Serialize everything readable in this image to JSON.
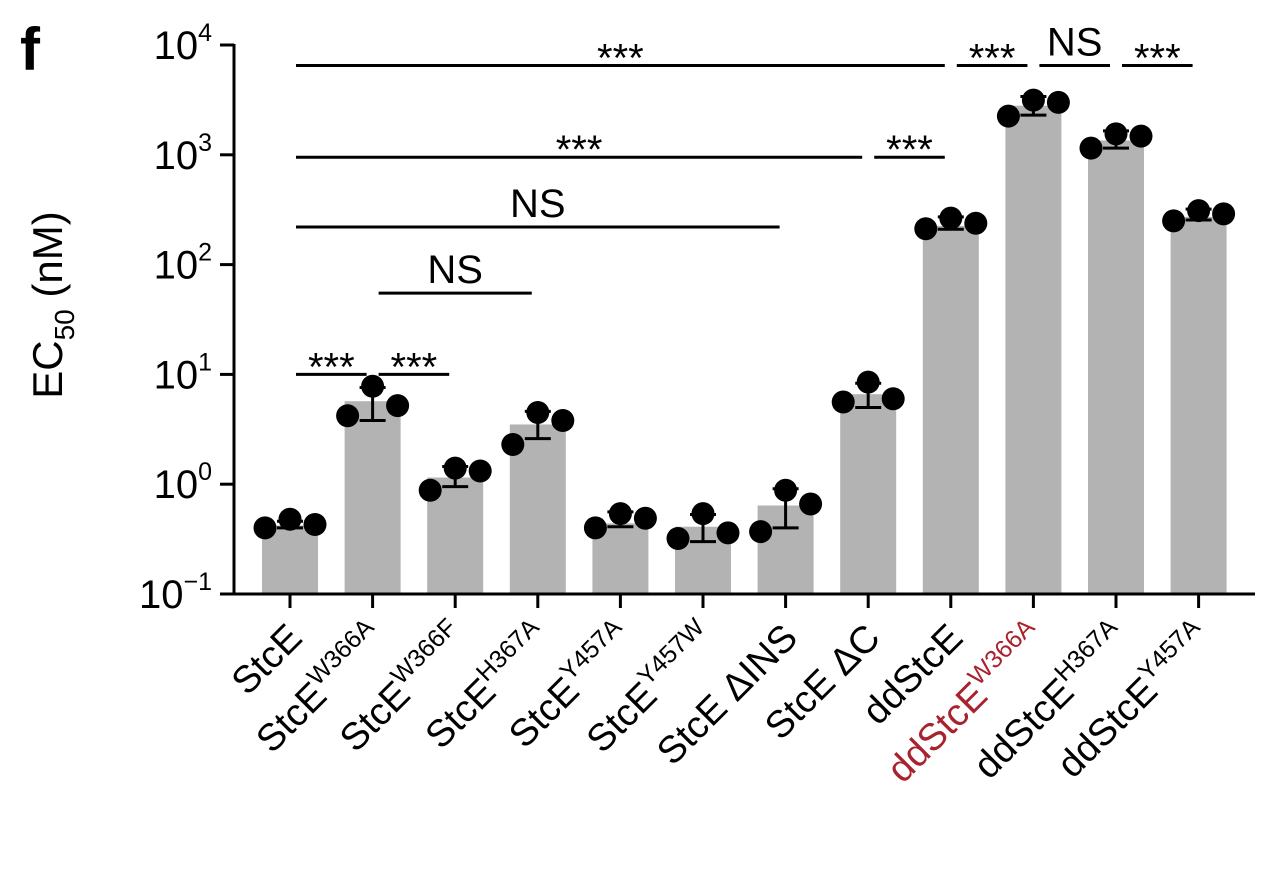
{
  "panel_label": "f",
  "chart_data": {
    "type": "bar",
    "ylabel": {
      "base": "EC",
      "sub": "50",
      "unit": " (nM)"
    },
    "yscale": "log",
    "ylim": [
      0.1,
      10000
    ],
    "yticks": [
      {
        "value": 0.1,
        "base": "10",
        "exp": "−1"
      },
      {
        "value": 1,
        "base": "10",
        "exp": "0"
      },
      {
        "value": 10,
        "base": "10",
        "exp": "1"
      },
      {
        "value": 100,
        "base": "10",
        "exp": "2"
      },
      {
        "value": 1000,
        "base": "10",
        "exp": "3"
      },
      {
        "value": 10000,
        "base": "10",
        "exp": "4"
      }
    ],
    "categories": [
      {
        "base": "StcE",
        "sup": "",
        "color": "#000000"
      },
      {
        "base": "StcE",
        "sup": "W366A",
        "color": "#000000"
      },
      {
        "base": "StcE",
        "sup": "W366F",
        "color": "#000000"
      },
      {
        "base": "StcE",
        "sup": "H367A",
        "color": "#000000"
      },
      {
        "base": "StcE",
        "sup": "Y457A",
        "color": "#000000"
      },
      {
        "base": "StcE",
        "sup": "Y457W",
        "color": "#000000"
      },
      {
        "base": "StcE ΔINS",
        "sup": "",
        "color": "#000000"
      },
      {
        "base": "StcE ΔC",
        "sup": "",
        "color": "#000000"
      },
      {
        "base": "ddStcE",
        "sup": "",
        "color": "#000000"
      },
      {
        "base": "ddStcE",
        "sup": "W366A",
        "color": "#a8232e"
      },
      {
        "base": "ddStcE",
        "sup": "H367A",
        "color": "#000000"
      },
      {
        "base": "ddStcE",
        "sup": "Y457A",
        "color": "#000000"
      }
    ],
    "values": [
      0.42,
      5.7,
      1.15,
      3.5,
      0.44,
      0.41,
      0.64,
      6.6,
      225,
      2800,
      1350,
      272
    ],
    "errors": [
      [
        0.4,
        0.46
      ],
      [
        3.8,
        7.6
      ],
      [
        0.95,
        1.45
      ],
      [
        2.6,
        4.6
      ],
      [
        0.41,
        0.56
      ],
      [
        0.3,
        0.53
      ],
      [
        0.4,
        0.91
      ],
      [
        5.0,
        8.3
      ],
      [
        210,
        272
      ],
      [
        2300,
        3400
      ],
      [
        1150,
        1650
      ],
      [
        255,
        320
      ]
    ],
    "points": [
      [
        0.4,
        0.48,
        0.43
      ],
      [
        4.2,
        7.8,
        5.2
      ],
      [
        0.88,
        1.4,
        1.32
      ],
      [
        2.3,
        4.5,
        3.8
      ],
      [
        0.4,
        0.54,
        0.49
      ],
      [
        0.32,
        0.54,
        0.36
      ],
      [
        0.37,
        0.88,
        0.66
      ],
      [
        5.6,
        8.5,
        6.0
      ],
      [
        212,
        265,
        238
      ],
      [
        2250,
        3150,
        3000
      ],
      [
        1150,
        1550,
        1480
      ],
      [
        250,
        310,
        290
      ]
    ],
    "bar_color": "#b3b3b3",
    "point_color": "#000000",
    "significance": [
      {
        "from": 0,
        "to": 1,
        "label": "***",
        "level": 10
      },
      {
        "from": 1,
        "to": 2,
        "label": "***",
        "level": 10
      },
      {
        "from": 1,
        "to": 3,
        "label": "NS",
        "level": 55
      },
      {
        "from": 0,
        "to": 6,
        "label": "NS",
        "level": 220
      },
      {
        "from": 0,
        "to": 7,
        "label": "***",
        "level": 950
      },
      {
        "from": 7,
        "to": 8,
        "label": "***",
        "level": 950
      },
      {
        "from": 0,
        "to": 8,
        "label": "***",
        "level": 6500
      },
      {
        "from": 8,
        "to": 9,
        "label": "***",
        "level": 6500
      },
      {
        "from": 9,
        "to": 10,
        "label": "NS",
        "level": 6500
      },
      {
        "from": 10,
        "to": 11,
        "label": "***",
        "level": 6500
      }
    ]
  }
}
